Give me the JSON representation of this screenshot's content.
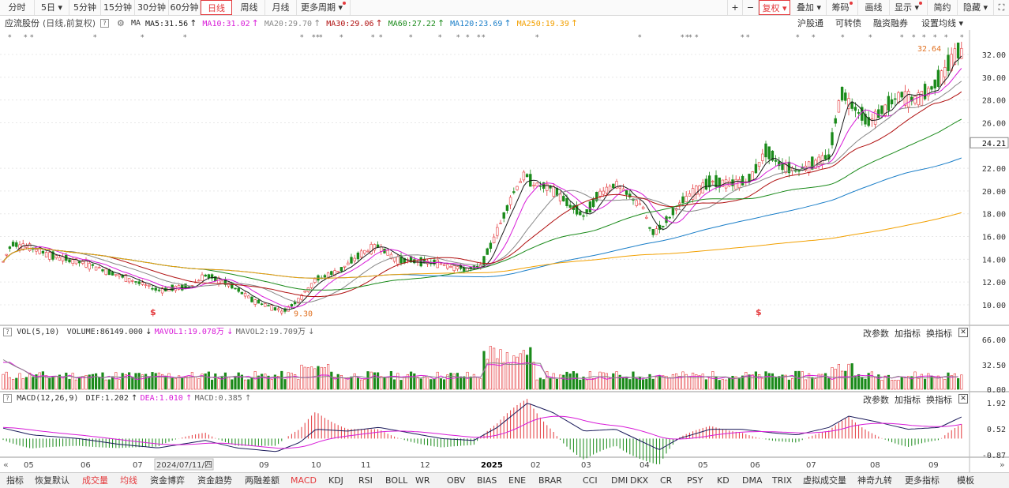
{
  "toolbar": {
    "periods": [
      "分时",
      "5日",
      "5分钟",
      "15分钟",
      "30分钟",
      "60分钟",
      "日线",
      "周线",
      "月线",
      "更多周期"
    ],
    "active_period": "日线",
    "right_buttons": [
      "复权",
      "叠加",
      "筹码",
      "画线",
      "显示",
      "简约",
      "隐藏"
    ],
    "plus": "+",
    "minus": "−"
  },
  "stock": {
    "name": "应流股份",
    "mode": "(日线,前复权)",
    "q": "?"
  },
  "ma_bar": {
    "label": "MA",
    "items": [
      {
        "text": "MA5:31.56",
        "color": "#1a1a1a"
      },
      {
        "text": "MA10:31.02",
        "color": "#d81bd8"
      },
      {
        "text": "MA20:29.70",
        "color": "#888888"
      },
      {
        "text": "MA30:29.06",
        "color": "#b01010"
      },
      {
        "text": "MA60:27.22",
        "color": "#1a8a1a"
      },
      {
        "text": "MA120:23.69",
        "color": "#1a7ec8"
      },
      {
        "text": "MA250:19.39",
        "color": "#f2a000"
      }
    ],
    "right_links": [
      "沪股通",
      "可转债",
      "融资融券",
      "设置均线"
    ]
  },
  "price_axis": [
    "32.00",
    "30.00",
    "28.00",
    "26.00",
    "24.21",
    "22.00",
    "20.00",
    "18.00",
    "16.00",
    "14.00",
    "12.00",
    "10.00"
  ],
  "annotations": {
    "high": "32.64",
    "low": "9.30",
    "marker": "$"
  },
  "vol_panel": {
    "title": "VOL(5,10)",
    "volume": "VOLUME:86149.000",
    "mavol1": "MAVOL1:19.078万",
    "mavol2": "MAVOL2:19.709万",
    "axis": [
      "66.00",
      "32.50",
      "0.00"
    ],
    "buttons": [
      "改参数",
      "加指标",
      "换指标"
    ],
    "close": "✕"
  },
  "macd_panel": {
    "title": "MACD(12,26,9)",
    "dif": "DIF:1.202",
    "dea": "DEA:1.010",
    "macd": "MACD:0.385",
    "axis": [
      "1.92",
      "0.52",
      "-0.87"
    ],
    "buttons": [
      "改参数",
      "加指标",
      "换指标"
    ],
    "close": "✕"
  },
  "time_axis": [
    "05",
    "06",
    "07",
    "2024/07/11/四",
    "09",
    "10",
    "11",
    "12",
    "2025",
    "02",
    "03",
    "04",
    "05",
    "06",
    "07",
    "08",
    "09"
  ],
  "bottom_tabs": [
    "指标",
    "恢复默认",
    "成交量",
    "均线",
    "资金博弈",
    "资金趋势",
    "两融差额",
    "MACD",
    "KDJ",
    "RSI",
    "BOLL",
    "WR",
    "OBV",
    "BIAS",
    "ENE",
    "BRAR",
    "CCI",
    "DMI",
    "DKX",
    "CR",
    "PSY",
    "KD",
    "DMA",
    "TRIX",
    "虚拟成交量",
    "神奇九转",
    "更多指标",
    "模板"
  ],
  "colors": {
    "up": "#e4393c",
    "down": "#1a8a1a",
    "accent": "#e4393c"
  }
}
